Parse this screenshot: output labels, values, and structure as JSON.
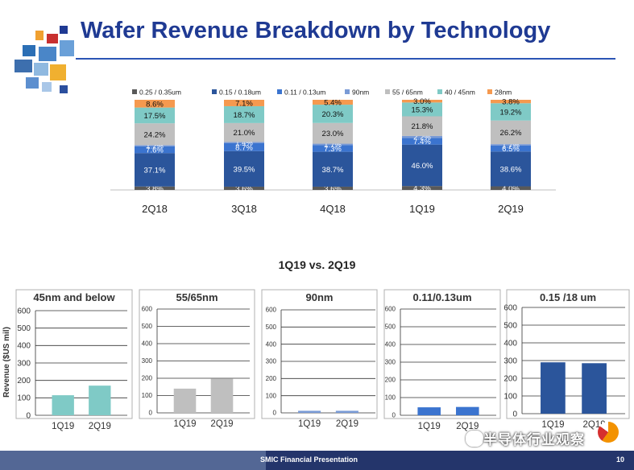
{
  "slide": {
    "title": "Wafer Revenue Breakdown by Technology",
    "comparison_title": "1Q19 vs. 2Q19",
    "footer_text": "SMIC Financial Presentation",
    "page_number": "10",
    "watermark": "半导体行业观察"
  },
  "colors": {
    "title": "#1f3a93",
    "footer": "#24356b"
  },
  "chart_data": [
    {
      "type": "bar",
      "stacked": true,
      "percent": true,
      "categories": [
        "2Q18",
        "3Q18",
        "4Q18",
        "1Q19",
        "2Q19"
      ],
      "legend_position": "top",
      "series": [
        {
          "name": "0.25 / 0.35um",
          "color": "#595959",
          "values": [
            3.8,
            3.6,
            3.6,
            4.3,
            4.0
          ],
          "labels": [
            "3.8%",
            "3.6%",
            "3.6%",
            "4.3%",
            "4.0%"
          ]
        },
        {
          "name": "0.15 / 0.18um",
          "color": "#2b559b",
          "values": [
            37.1,
            39.5,
            38.7,
            46.0,
            38.6
          ],
          "labels": [
            "37.1%",
            "39.5%",
            "38.7%",
            "46.0%",
            "38.6%"
          ]
        },
        {
          "name": "0.11 / 0.13um",
          "color": "#3b74cf",
          "values": [
            7.6,
            8.7,
            7.3,
            7.4,
            6.5
          ],
          "labels": [
            "7.6%",
            "8.7%",
            "7.3%",
            "7.4%",
            "6.5%"
          ]
        },
        {
          "name": "90nm",
          "color": "#7a9bd6",
          "values": [
            1.2,
            1.4,
            1.7,
            2.2,
            1.7
          ],
          "labels": [
            "1.2%",
            "1.4%",
            "1.7%",
            "2.2%",
            "1.7%"
          ]
        },
        {
          "name": "55 / 65nm",
          "color": "#bfbfbf",
          "values": [
            24.2,
            21.0,
            23.0,
            21.8,
            26.2
          ],
          "labels": [
            "24.2%",
            "21.0%",
            "23.0%",
            "21.8%",
            "26.2%"
          ]
        },
        {
          "name": "40 / 45nm",
          "color": "#7fcac6",
          "values": [
            17.5,
            18.7,
            20.3,
            15.3,
            19.2
          ],
          "labels": [
            "17.5%",
            "18.7%",
            "20.3%",
            "15.3%",
            "19.2%"
          ]
        },
        {
          "name": "28nm",
          "color": "#f5994f",
          "values": [
            8.6,
            7.1,
            5.4,
            3.0,
            3.8
          ],
          "labels": [
            "8.6%",
            "7.1%",
            "5.4%",
            "3.0%",
            "3.8%"
          ]
        }
      ]
    },
    {
      "type": "bar",
      "title": "45nm and below",
      "ylabel": "Revenue ($US mil)",
      "categories": [
        "1Q19",
        "2Q19"
      ],
      "values": [
        115,
        170
      ],
      "color": "#7fcac6",
      "ylim": [
        0,
        600
      ],
      "yticks": [
        0,
        100,
        200,
        300,
        400,
        500,
        600
      ],
      "grid": true
    },
    {
      "type": "bar",
      "title": "55/65nm",
      "categories": [
        "1Q19",
        "2Q19"
      ],
      "values": [
        140,
        197
      ],
      "color": "#bfbfbf",
      "ylim": [
        0,
        600
      ],
      "yticks": [
        0,
        100,
        200,
        300,
        400,
        500,
        600
      ],
      "grid": true
    },
    {
      "type": "bar",
      "title": "90nm",
      "categories": [
        "1Q19",
        "2Q19"
      ],
      "values": [
        12,
        12
      ],
      "color": "#7a9bd6",
      "ylim": [
        0,
        600
      ],
      "yticks": [
        0,
        100,
        200,
        300,
        400,
        500,
        600
      ],
      "grid": true
    },
    {
      "type": "bar",
      "title": "0.11/0.13um",
      "categories": [
        "1Q19",
        "2Q19"
      ],
      "values": [
        45,
        47
      ],
      "color": "#3b74cf",
      "ylim": [
        0,
        600
      ],
      "yticks": [
        0,
        100,
        200,
        300,
        400,
        500,
        600
      ],
      "grid": true
    },
    {
      "type": "bar",
      "title": "0.15 /18 um",
      "categories": [
        "1Q19",
        "2Q19"
      ],
      "values": [
        290,
        285
      ],
      "color": "#2b559b",
      "ylim": [
        0,
        600
      ],
      "yticks": [
        0,
        100,
        200,
        300,
        400,
        500,
        600
      ],
      "grid": true
    }
  ]
}
